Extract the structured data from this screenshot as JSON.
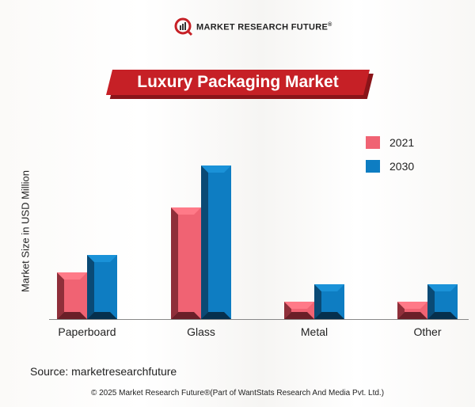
{
  "logo": {
    "text": "MARKET RESEARCH FUTURE",
    "mark": "®"
  },
  "chart_data": {
    "type": "bar",
    "title": "Luxury Packaging Market",
    "ylabel": "Market Size in USD Million",
    "xlabel": "",
    "categories": [
      "Paperboard",
      "Glass",
      "Metal",
      "Other"
    ],
    "series": [
      {
        "name": "2021",
        "color": "#f06373",
        "values": [
          59,
          141,
          22,
          22
        ]
      },
      {
        "name": "2030",
        "color": "#0e7dc2",
        "values": [
          81,
          194,
          44,
          44
        ]
      }
    ],
    "ylim": [
      0,
      200
    ],
    "y_ticks_shown": false,
    "grid": false,
    "legend": "top-right"
  },
  "source": "Source: marketresearchfuture",
  "footer": "© 2025 Market Research Future®(Part of WantStats Research And Media Pvt. Ltd.)"
}
